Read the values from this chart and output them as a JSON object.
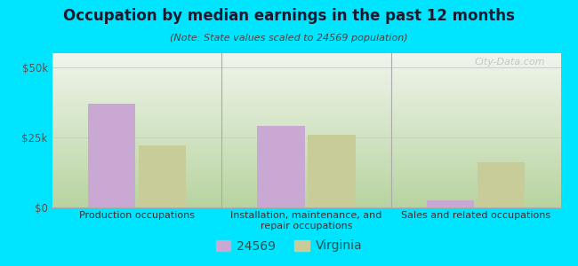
{
  "title": "Occupation by median earnings in the past 12 months",
  "subtitle": "(Note: State values scaled to 24569 population)",
  "categories": [
    "Production occupations",
    "Installation, maintenance, and\nrepair occupations",
    "Sales and related occupations"
  ],
  "values_24569": [
    37000,
    29000,
    2500
  ],
  "values_virginia": [
    22000,
    26000,
    16000
  ],
  "color_24569": "#c9a8d4",
  "color_virginia": "#c8cc99",
  "ylim": [
    0,
    55000
  ],
  "yticks": [
    0,
    25000,
    50000
  ],
  "ytick_labels": [
    "$0",
    "$25k",
    "$50k"
  ],
  "background_outer": "#00e5ff",
  "grid_color": "#cccccc",
  "bar_width": 0.28,
  "legend_label_24569": "24569",
  "legend_label_virginia": "Virginia",
  "watermark": "City-Data.com"
}
